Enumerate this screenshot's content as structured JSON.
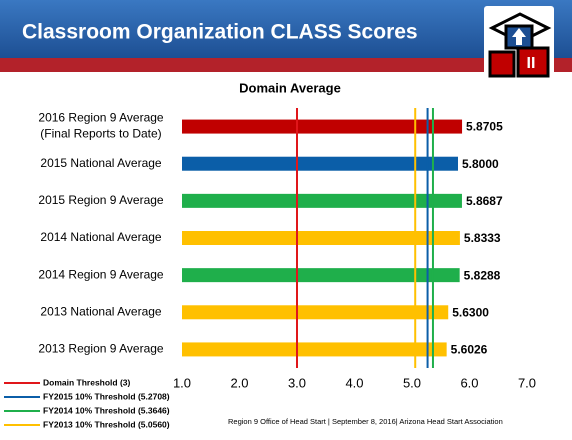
{
  "header": {
    "title": "Classroom Organization CLASS Scores"
  },
  "chart_data": {
    "type": "barh",
    "title": "Domain Average",
    "categories": [
      "2016 Region 9 Average\n(Final Reports to Date)",
      "2015 National Average",
      "2015 Region 9 Average",
      "2014 National Average",
      "2014 Region 9 Average",
      "2013 National Average",
      "2013 Region 9 Average"
    ],
    "values": [
      5.8705,
      5.8,
      5.8687,
      5.8333,
      5.8288,
      5.63,
      5.6026
    ],
    "value_labels": [
      "5.8705",
      "5.8000",
      "5.8687",
      "5.8333",
      "5.8288",
      "5.6300",
      "5.6026"
    ],
    "colors": [
      "#c00000",
      "#0b5ea8",
      "#1faf4b",
      "#ffc000",
      "#1faf4b",
      "#ffc000",
      "#ffc000"
    ],
    "xlim": [
      1,
      7
    ],
    "xticks": [
      {
        "value": 1,
        "label": "1.0"
      },
      {
        "value": 2,
        "label": "2.0"
      },
      {
        "value": 3,
        "label": "3.0"
      },
      {
        "value": 4,
        "label": "4.0"
      },
      {
        "value": 5,
        "label": "5.0"
      },
      {
        "value": 6,
        "label": "6.0"
      },
      {
        "value": 7,
        "label": "7.0"
      }
    ],
    "grid": false,
    "thresholds": [
      {
        "name": "Domain Threshold (3)",
        "value": 3,
        "color": "#e0161a"
      },
      {
        "name": "FY2015 10% Threshold (5.2708)",
        "value": 5.2708,
        "color": "#0b5ea8"
      },
      {
        "name": "FY2014 10% Threshold (5.3646)",
        "value": 5.3646,
        "color": "#1faf4b"
      },
      {
        "name": "FY2013 10% Threshold (5.0560)",
        "value": 5.056,
        "color": "#ffc000"
      }
    ]
  },
  "footer": "Region 9 Office of Head Start  | September 8, 2016| Arizona Head Start Association"
}
